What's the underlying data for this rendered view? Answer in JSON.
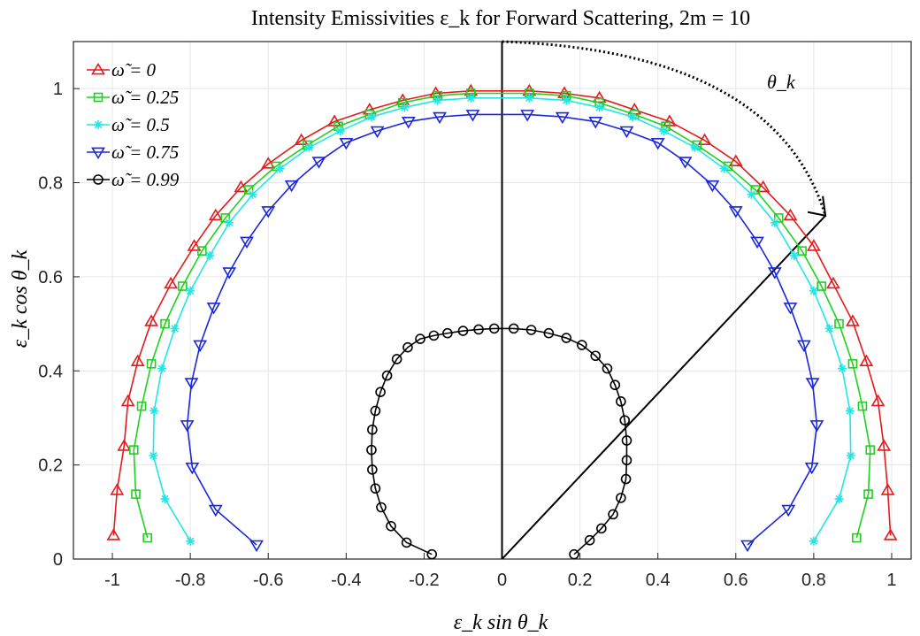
{
  "chart_data": {
    "type": "line",
    "title": "Intensity Emissivities ε_k for Forward Scattering, 2m = 10",
    "xlabel": "ε_k sin θ_k",
    "ylabel": "ε_k cos θ_k",
    "xlim": [
      -1.1,
      1.05
    ],
    "ylim": [
      0,
      1.1
    ],
    "xticks": [
      -1,
      -0.8,
      -0.6,
      -0.4,
      -0.2,
      0,
      0.2,
      0.4,
      0.6,
      0.8,
      1
    ],
    "xtick_labels": [
      "-1",
      "-0.8",
      "-0.6",
      "-0.4",
      "-0.2",
      "0",
      "0.2",
      "0.4",
      "0.6",
      "0.8",
      "1"
    ],
    "yticks": [
      0,
      0.2,
      0.4,
      0.6,
      0.8,
      1
    ],
    "ytick_labels": [
      "0",
      "0.2",
      "0.4",
      "0.6",
      "0.8",
      "1"
    ],
    "grid": true,
    "legend_position": "top-left",
    "annotation": "θ_k",
    "series": [
      {
        "name": "ω̃ = 0",
        "color": "#e41a1c",
        "marker": "triangle-up",
        "points": [
          [
            -0.997,
            0.05
          ],
          [
            -0.988,
            0.146
          ],
          [
            -0.97,
            0.24
          ],
          [
            -0.96,
            0.335
          ],
          [
            -0.935,
            0.42
          ],
          [
            -0.9,
            0.505
          ],
          [
            -0.85,
            0.585
          ],
          [
            -0.79,
            0.665
          ],
          [
            -0.735,
            0.73
          ],
          [
            -0.67,
            0.79
          ],
          [
            -0.6,
            0.84
          ],
          [
            -0.515,
            0.89
          ],
          [
            -0.43,
            0.93
          ],
          [
            -0.34,
            0.955
          ],
          [
            -0.255,
            0.975
          ],
          [
            -0.17,
            0.99
          ],
          [
            -0.08,
            0.995
          ],
          [
            0.07,
            0.995
          ],
          [
            0.16,
            0.99
          ],
          [
            0.25,
            0.98
          ],
          [
            0.34,
            0.955
          ],
          [
            0.43,
            0.93
          ],
          [
            0.52,
            0.89
          ],
          [
            0.6,
            0.845
          ],
          [
            0.67,
            0.79
          ],
          [
            0.74,
            0.73
          ],
          [
            0.8,
            0.665
          ],
          [
            0.85,
            0.585
          ],
          [
            0.9,
            0.505
          ],
          [
            0.935,
            0.42
          ],
          [
            0.965,
            0.335
          ],
          [
            0.98,
            0.24
          ],
          [
            0.99,
            0.146
          ],
          [
            0.997,
            0.05
          ]
        ]
      },
      {
        "name": "ω̃ = 0.25",
        "color": "#1fd11f",
        "marker": "square",
        "points": [
          [
            -0.91,
            0.045
          ],
          [
            -0.94,
            0.138
          ],
          [
            -0.945,
            0.232
          ],
          [
            -0.925,
            0.325
          ],
          [
            -0.9,
            0.415
          ],
          [
            -0.865,
            0.5
          ],
          [
            -0.82,
            0.58
          ],
          [
            -0.77,
            0.655
          ],
          [
            -0.71,
            0.725
          ],
          [
            -0.65,
            0.785
          ],
          [
            -0.58,
            0.835
          ],
          [
            -0.5,
            0.88
          ],
          [
            -0.42,
            0.92
          ],
          [
            -0.34,
            0.945
          ],
          [
            -0.255,
            0.97
          ],
          [
            -0.165,
            0.985
          ],
          [
            -0.08,
            0.99
          ],
          [
            0.07,
            0.99
          ],
          [
            0.165,
            0.985
          ],
          [
            0.25,
            0.97
          ],
          [
            0.34,
            0.945
          ],
          [
            0.42,
            0.92
          ],
          [
            0.5,
            0.88
          ],
          [
            0.58,
            0.835
          ],
          [
            0.65,
            0.785
          ],
          [
            0.71,
            0.725
          ],
          [
            0.77,
            0.655
          ],
          [
            0.82,
            0.58
          ],
          [
            0.865,
            0.5
          ],
          [
            0.9,
            0.415
          ],
          [
            0.925,
            0.325
          ],
          [
            0.945,
            0.232
          ],
          [
            0.94,
            0.138
          ],
          [
            0.91,
            0.045
          ]
        ]
      },
      {
        "name": "ω̃ = 0.5",
        "color": "#22e6e6",
        "marker": "asterisk",
        "points": [
          [
            -0.8,
            0.038
          ],
          [
            -0.865,
            0.128
          ],
          [
            -0.895,
            0.22
          ],
          [
            -0.893,
            0.315
          ],
          [
            -0.873,
            0.405
          ],
          [
            -0.84,
            0.49
          ],
          [
            -0.8,
            0.57
          ],
          [
            -0.75,
            0.645
          ],
          [
            -0.7,
            0.715
          ],
          [
            -0.64,
            0.775
          ],
          [
            -0.57,
            0.83
          ],
          [
            -0.495,
            0.875
          ],
          [
            -0.415,
            0.91
          ],
          [
            -0.335,
            0.94
          ],
          [
            -0.25,
            0.96
          ],
          [
            -0.165,
            0.975
          ],
          [
            -0.08,
            0.98
          ],
          [
            0.07,
            0.98
          ],
          [
            0.165,
            0.975
          ],
          [
            0.25,
            0.96
          ],
          [
            0.335,
            0.94
          ],
          [
            0.415,
            0.91
          ],
          [
            0.495,
            0.875
          ],
          [
            0.57,
            0.83
          ],
          [
            0.64,
            0.775
          ],
          [
            0.7,
            0.715
          ],
          [
            0.75,
            0.645
          ],
          [
            0.8,
            0.57
          ],
          [
            0.84,
            0.49
          ],
          [
            0.873,
            0.405
          ],
          [
            0.893,
            0.315
          ],
          [
            0.895,
            0.22
          ],
          [
            0.865,
            0.128
          ],
          [
            0.8,
            0.038
          ]
        ]
      },
      {
        "name": "ω̃ = 0.75",
        "color": "#1a26d9",
        "marker": "triangle-down",
        "points": [
          [
            -0.63,
            0.03
          ],
          [
            -0.735,
            0.105
          ],
          [
            -0.795,
            0.195
          ],
          [
            -0.808,
            0.285
          ],
          [
            -0.797,
            0.375
          ],
          [
            -0.775,
            0.455
          ],
          [
            -0.74,
            0.535
          ],
          [
            -0.7,
            0.61
          ],
          [
            -0.655,
            0.675
          ],
          [
            -0.6,
            0.74
          ],
          [
            -0.54,
            0.795
          ],
          [
            -0.47,
            0.845
          ],
          [
            -0.4,
            0.885
          ],
          [
            -0.32,
            0.91
          ],
          [
            -0.24,
            0.93
          ],
          [
            -0.16,
            0.94
          ],
          [
            -0.075,
            0.945
          ],
          [
            0.065,
            0.945
          ],
          [
            0.155,
            0.94
          ],
          [
            0.24,
            0.93
          ],
          [
            0.32,
            0.91
          ],
          [
            0.4,
            0.885
          ],
          [
            0.47,
            0.845
          ],
          [
            0.54,
            0.795
          ],
          [
            0.6,
            0.74
          ],
          [
            0.655,
            0.675
          ],
          [
            0.7,
            0.61
          ],
          [
            0.74,
            0.535
          ],
          [
            0.775,
            0.455
          ],
          [
            0.797,
            0.375
          ],
          [
            0.808,
            0.285
          ],
          [
            0.795,
            0.195
          ],
          [
            0.735,
            0.105
          ],
          [
            0.63,
            0.03
          ]
        ]
      },
      {
        "name": "ω̃ = 0.99",
        "color": "#000000",
        "marker": "circle",
        "points": [
          [
            -0.18,
            0.01
          ],
          [
            -0.245,
            0.035
          ],
          [
            -0.285,
            0.07
          ],
          [
            -0.31,
            0.11
          ],
          [
            -0.325,
            0.15
          ],
          [
            -0.333,
            0.19
          ],
          [
            -0.335,
            0.232
          ],
          [
            -0.333,
            0.275
          ],
          [
            -0.325,
            0.315
          ],
          [
            -0.312,
            0.355
          ],
          [
            -0.295,
            0.39
          ],
          [
            -0.27,
            0.425
          ],
          [
            -0.242,
            0.45
          ],
          [
            -0.21,
            0.468
          ],
          [
            -0.175,
            0.475
          ],
          [
            -0.14,
            0.48
          ],
          [
            -0.1,
            0.485
          ],
          [
            -0.06,
            0.488
          ],
          [
            -0.02,
            0.49
          ],
          [
            0.03,
            0.49
          ],
          [
            0.075,
            0.487
          ],
          [
            0.12,
            0.48
          ],
          [
            0.165,
            0.47
          ],
          [
            0.205,
            0.455
          ],
          [
            0.24,
            0.432
          ],
          [
            0.27,
            0.405
          ],
          [
            0.29,
            0.37
          ],
          [
            0.305,
            0.335
          ],
          [
            0.315,
            0.295
          ],
          [
            0.32,
            0.252
          ],
          [
            0.32,
            0.21
          ],
          [
            0.318,
            0.17
          ],
          [
            0.305,
            0.13
          ],
          [
            0.285,
            0.095
          ],
          [
            0.255,
            0.065
          ],
          [
            0.225,
            0.04
          ],
          [
            0.185,
            0.01
          ]
        ]
      }
    ]
  }
}
